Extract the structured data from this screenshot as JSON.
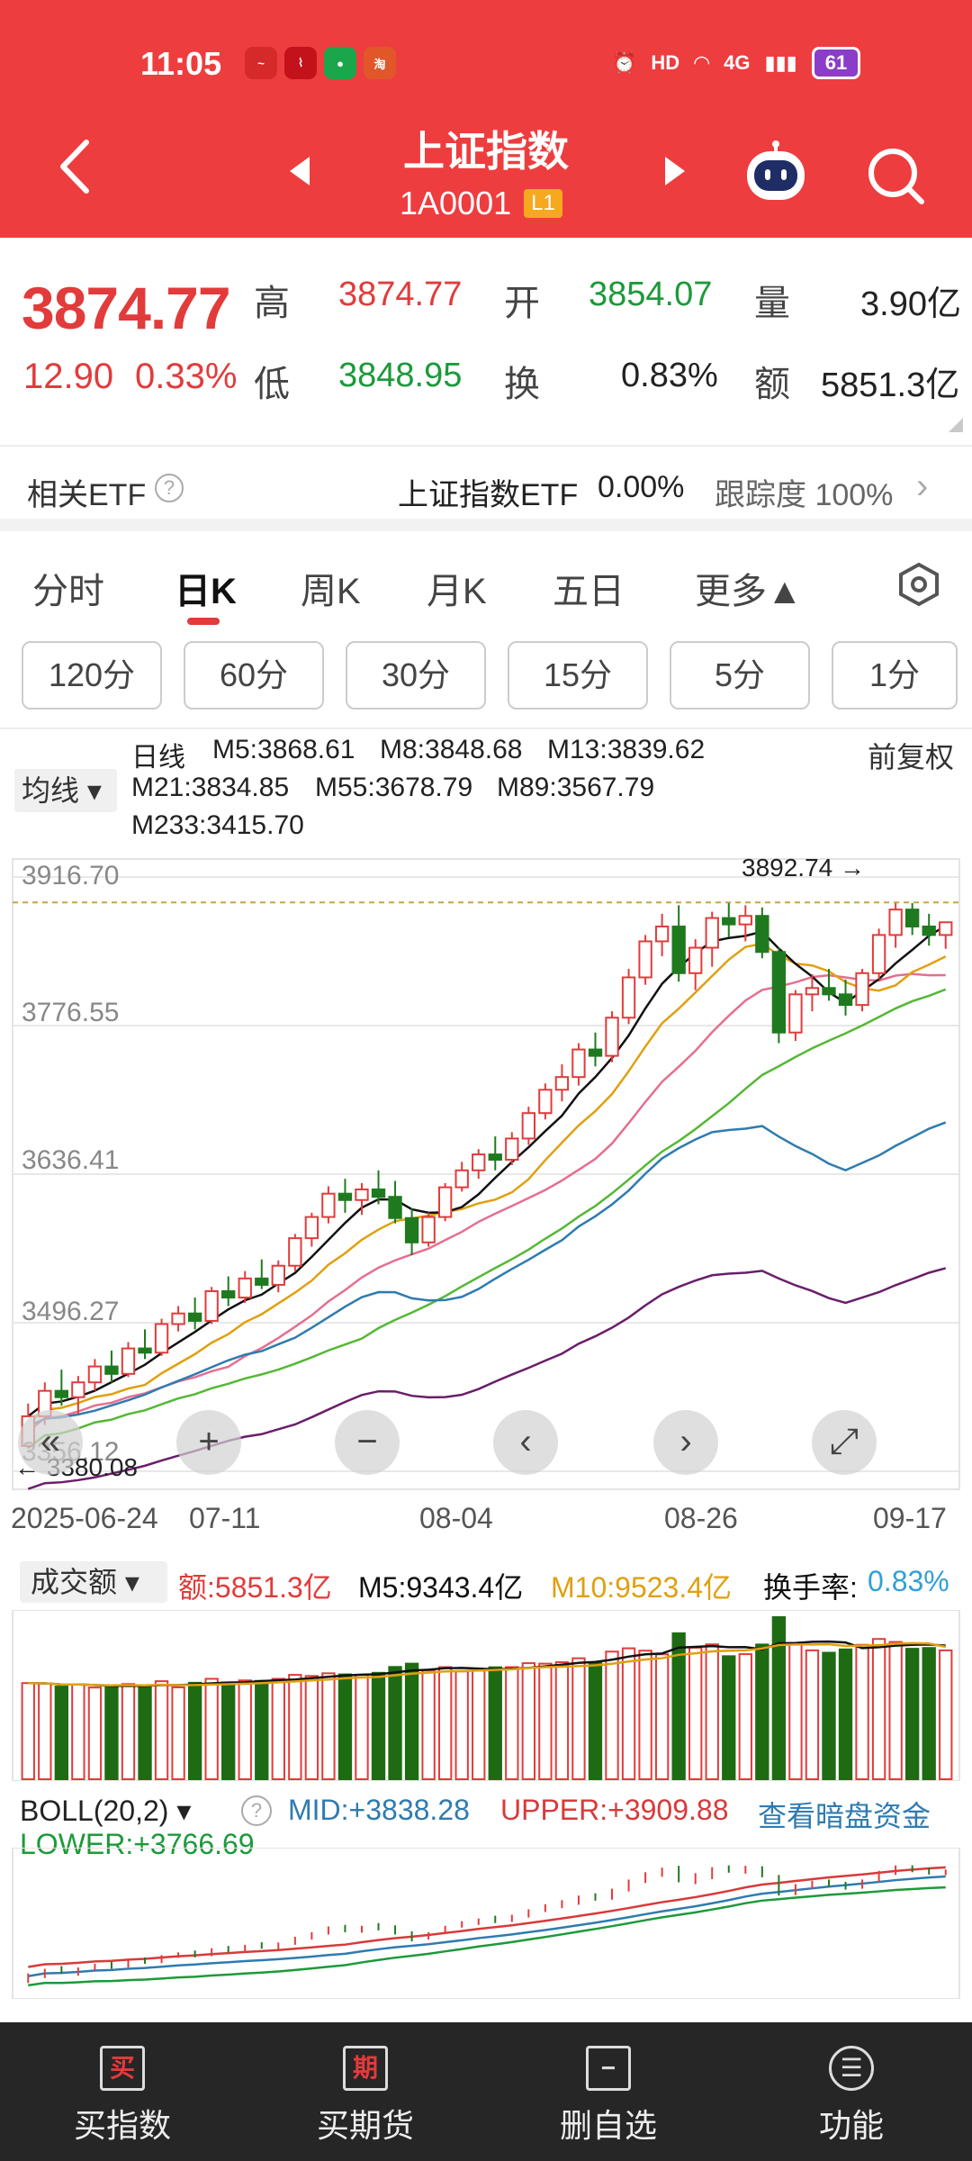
{
  "status": {
    "time": "11:05",
    "hd": "HD",
    "net": "4G",
    "battery": "61"
  },
  "header": {
    "title": "上证指数",
    "code": "1A0001",
    "badge": "L1"
  },
  "quote": {
    "price": "3874.77",
    "change": "12.90",
    "change_pct": "0.33%",
    "high_label": "高",
    "high": "3874.77",
    "open_label": "开",
    "open": "3854.07",
    "volume_label": "量",
    "volume": "3.90亿",
    "low_label": "低",
    "low": "3848.95",
    "turnover_label": "换",
    "turnover": "0.83%",
    "amount_label": "额",
    "amount": "5851.3亿"
  },
  "etf": {
    "label": "相关ETF",
    "name": "上证指数ETF",
    "change": "0.00%",
    "tracking": "跟踪度 100%"
  },
  "tabs": [
    "分时",
    "日K",
    "周K",
    "月K",
    "五日",
    "更多▲"
  ],
  "intervals": [
    "120分",
    "60分",
    "30分",
    "15分",
    "5分",
    "1分"
  ],
  "ma_legend": {
    "selector": "均线",
    "period": "日线",
    "adjust": "前复权",
    "items": [
      {
        "label": "M5:3868.61",
        "color": "#111111"
      },
      {
        "label": "M8:3848.68",
        "color": "#e0a010"
      },
      {
        "label": "M13:3839.62",
        "color": "#e56f8f"
      },
      {
        "label": "M21:3834.85",
        "color": "#55b835"
      },
      {
        "label": "M55:3678.79",
        "color": "#2f7bb0"
      },
      {
        "label": "M89:3567.79",
        "color": "#6a1e6a"
      },
      {
        "label": "M233:3415.70",
        "color": "#b5503a"
      }
    ]
  },
  "kline": {
    "y_ticks": [
      "3916.70",
      "3776.55",
      "3636.41",
      "3496.27",
      "3356.12"
    ],
    "x_ticks": [
      "2025-06-24",
      "07-11",
      "08-04",
      "08-26",
      "09-17"
    ],
    "high_marker": "3892.74",
    "low_marker": "3380.08"
  },
  "chart_data": {
    "type": "candlestick",
    "note": "daily K-line, 60 sessions approx",
    "ylim": [
      3356.12,
      3916.7
    ],
    "ohlc": [
      [
        3380,
        3420,
        3378,
        3408
      ],
      [
        3408,
        3440,
        3400,
        3432
      ],
      [
        3432,
        3452,
        3418,
        3426
      ],
      [
        3426,
        3446,
        3410,
        3440
      ],
      [
        3440,
        3462,
        3432,
        3455
      ],
      [
        3455,
        3470,
        3440,
        3448
      ],
      [
        3448,
        3478,
        3445,
        3472
      ],
      [
        3472,
        3490,
        3462,
        3468
      ],
      [
        3468,
        3500,
        3465,
        3495
      ],
      [
        3495,
        3512,
        3488,
        3505
      ],
      [
        3505,
        3520,
        3490,
        3498
      ],
      [
        3498,
        3530,
        3495,
        3526
      ],
      [
        3526,
        3540,
        3512,
        3520
      ],
      [
        3520,
        3545,
        3515,
        3538
      ],
      [
        3538,
        3556,
        3528,
        3532
      ],
      [
        3532,
        3555,
        3525,
        3550
      ],
      [
        3550,
        3580,
        3545,
        3576
      ],
      [
        3576,
        3600,
        3568,
        3596
      ],
      [
        3596,
        3625,
        3590,
        3618
      ],
      [
        3618,
        3632,
        3600,
        3612
      ],
      [
        3612,
        3628,
        3598,
        3622
      ],
      [
        3622,
        3640,
        3608,
        3615
      ],
      [
        3615,
        3630,
        3590,
        3595
      ],
      [
        3595,
        3604,
        3560,
        3572
      ],
      [
        3572,
        3600,
        3568,
        3596
      ],
      [
        3596,
        3628,
        3592,
        3624
      ],
      [
        3624,
        3648,
        3620,
        3640
      ],
      [
        3640,
        3660,
        3632,
        3655
      ],
      [
        3655,
        3672,
        3640,
        3650
      ],
      [
        3650,
        3676,
        3645,
        3670
      ],
      [
        3670,
        3700,
        3664,
        3694
      ],
      [
        3694,
        3722,
        3688,
        3716
      ],
      [
        3716,
        3740,
        3705,
        3728
      ],
      [
        3728,
        3760,
        3720,
        3754
      ],
      [
        3754,
        3770,
        3738,
        3748
      ],
      [
        3748,
        3790,
        3742,
        3784
      ],
      [
        3784,
        3830,
        3778,
        3822
      ],
      [
        3822,
        3862,
        3815,
        3856
      ],
      [
        3856,
        3882,
        3842,
        3870
      ],
      [
        3870,
        3890,
        3818,
        3826
      ],
      [
        3826,
        3858,
        3810,
        3850
      ],
      [
        3850,
        3884,
        3832,
        3878
      ],
      [
        3878,
        3892,
        3860,
        3872
      ],
      [
        3872,
        3890,
        3856,
        3880
      ],
      [
        3880,
        3888,
        3840,
        3846
      ],
      [
        3846,
        3850,
        3760,
        3770
      ],
      [
        3770,
        3810,
        3762,
        3806
      ],
      [
        3806,
        3825,
        3790,
        3812
      ],
      [
        3812,
        3830,
        3800,
        3806
      ],
      [
        3806,
        3820,
        3786,
        3796
      ],
      [
        3796,
        3830,
        3790,
        3826
      ],
      [
        3826,
        3868,
        3820,
        3862
      ],
      [
        3862,
        3892,
        3850,
        3886
      ],
      [
        3886,
        3892,
        3862,
        3870
      ],
      [
        3870,
        3882,
        3852,
        3862
      ],
      [
        3862,
        3874,
        3849,
        3874
      ]
    ]
  },
  "volume": {
    "selector": "成交额",
    "amount": "额:5851.3亿",
    "m5": "M5:9343.4亿",
    "m10": "M10:9523.4亿",
    "turnover_label": "换手率:",
    "turnover": "0.83%"
  },
  "boll": {
    "selector": "BOLL(20,2)",
    "mid": "MID:+3838.28",
    "upper": "UPPER:+3909.88",
    "link": "查看暗盘资金",
    "lower": "LOWER:+3766.69"
  },
  "bottom_nav": [
    {
      "icon": "买",
      "label": "买指数"
    },
    {
      "icon": "期",
      "label": "买期货"
    },
    {
      "icon": "−",
      "label": "删自选"
    },
    {
      "icon": "☰",
      "label": "功能"
    }
  ]
}
